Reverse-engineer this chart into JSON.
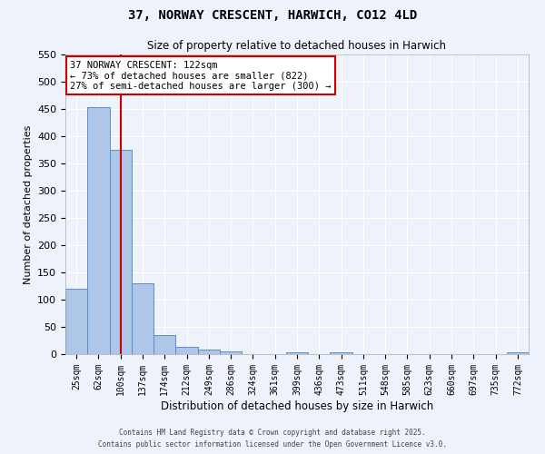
{
  "title": "37, NORWAY CRESCENT, HARWICH, CO12 4LD",
  "subtitle": "Size of property relative to detached houses in Harwich",
  "xlabel": "Distribution of detached houses by size in Harwich",
  "ylabel": "Number of detached properties",
  "categories": [
    "25sqm",
    "62sqm",
    "100sqm",
    "137sqm",
    "174sqm",
    "212sqm",
    "249sqm",
    "286sqm",
    "324sqm",
    "361sqm",
    "399sqm",
    "436sqm",
    "473sqm",
    "511sqm",
    "548sqm",
    "585sqm",
    "623sqm",
    "660sqm",
    "697sqm",
    "735sqm",
    "772sqm"
  ],
  "values": [
    120,
    453,
    375,
    130,
    35,
    13,
    8,
    5,
    0,
    0,
    3,
    0,
    4,
    0,
    0,
    0,
    0,
    0,
    0,
    0,
    4
  ],
  "bar_color": "#aec6e8",
  "bar_edge_color": "#5b8fc9",
  "background_color": "#eef2fb",
  "grid_color": "#ffffff",
  "ylim": [
    0,
    550
  ],
  "yticks": [
    0,
    50,
    100,
    150,
    200,
    250,
    300,
    350,
    400,
    450,
    500,
    550
  ],
  "vline_x": 2.5,
  "vline_color": "#cc0000",
  "annotation_text": "37 NORWAY CRESCENT: 122sqm\n← 73% of detached houses are smaller (822)\n27% of semi-detached houses are larger (300) →",
  "annotation_box_color": "#cc0000",
  "footnote1": "Contains HM Land Registry data © Crown copyright and database right 2025.",
  "footnote2": "Contains public sector information licensed under the Open Government Licence v3.0."
}
